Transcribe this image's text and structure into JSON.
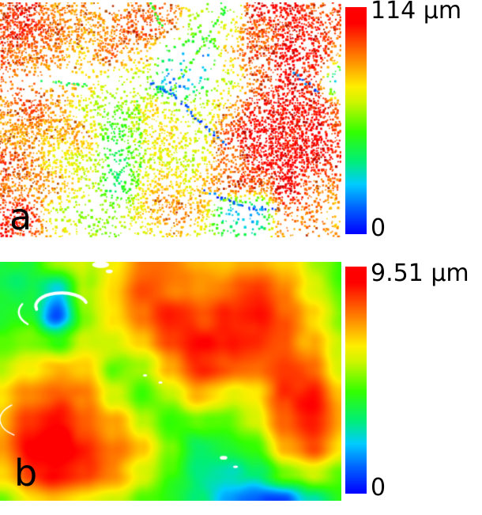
{
  "colormap": {
    "name": "rainbow-jet",
    "stops": [
      {
        "t": 0.0,
        "c": "#0000ff"
      },
      {
        "t": 0.12,
        "c": "#0066ff"
      },
      {
        "t": 0.22,
        "c": "#00ccff"
      },
      {
        "t": 0.32,
        "c": "#00ee77"
      },
      {
        "t": 0.45,
        "c": "#33ff00"
      },
      {
        "t": 0.58,
        "c": "#ccf500"
      },
      {
        "t": 0.65,
        "c": "#ffee00"
      },
      {
        "t": 0.75,
        "c": "#ff9900"
      },
      {
        "t": 0.85,
        "c": "#ff4400"
      },
      {
        "t": 0.93,
        "c": "#ff0000"
      },
      {
        "t": 1.0,
        "c": "#ff0000"
      }
    ],
    "text_color": "#000000",
    "background": "#ffffff"
  },
  "chart_data": [
    {
      "type": "heatmap",
      "panel_label": "a",
      "style": "sparse-speckle",
      "unit": "µm",
      "value_range": [
        0,
        114
      ],
      "colorbar": {
        "max_label": "114 µm",
        "min_label": "0",
        "orientation": "vertical",
        "position": "right"
      },
      "grid_cols": 13,
      "grid_rows": 10,
      "values": [
        [
          0.9,
          0.85,
          0.8,
          0.75,
          0.78,
          0.8,
          0.85,
          0.6,
          0.45,
          0.9,
          0.9,
          0.85,
          0.8
        ],
        [
          0.9,
          0.85,
          0.8,
          0.75,
          0.8,
          0.8,
          0.75,
          0.5,
          0.6,
          0.9,
          0.9,
          0.9,
          0.85
        ],
        [
          0.9,
          0.85,
          0.8,
          0.7,
          0.75,
          0.7,
          0.3,
          0.1,
          0.7,
          0.85,
          0.9,
          0.85,
          0.8
        ],
        [
          0.85,
          0.8,
          0.75,
          0.62,
          0.55,
          0.5,
          0.15,
          0.3,
          0.6,
          0.85,
          0.9,
          0.85,
          0.2
        ],
        [
          0.8,
          0.8,
          0.75,
          0.65,
          0.55,
          0.62,
          0.55,
          0.65,
          0.75,
          0.9,
          0.9,
          0.9,
          0.85
        ],
        [
          0.8,
          0.8,
          0.75,
          0.7,
          0.45,
          0.63,
          0.62,
          0.55,
          0.8,
          0.9,
          0.9,
          0.9,
          0.85
        ],
        [
          0.8,
          0.75,
          0.7,
          0.65,
          0.35,
          0.62,
          0.65,
          0.6,
          0.8,
          0.9,
          0.9,
          0.9,
          0.85
        ],
        [
          0.85,
          0.8,
          0.7,
          0.6,
          0.3,
          0.65,
          0.7,
          0.7,
          0.75,
          0.85,
          0.9,
          0.85,
          0.8
        ],
        [
          0.9,
          0.85,
          0.6,
          0.55,
          0.6,
          0.7,
          0.75,
          0.7,
          0.3,
          0.2,
          0.85,
          0.8,
          0.75
        ],
        [
          0.9,
          0.85,
          0.7,
          0.6,
          0.55,
          0.65,
          0.7,
          0.6,
          0.4,
          0.3,
          0.8,
          0.75,
          0.7
        ]
      ],
      "density": [
        [
          0.7,
          0.6,
          0.5,
          0.45,
          0.1,
          0.5,
          0.4,
          0.12,
          0.15,
          0.5,
          0.6,
          0.5,
          0.4
        ],
        [
          0.8,
          0.8,
          0.7,
          0.6,
          0.55,
          0.6,
          0.3,
          0.1,
          0.2,
          0.7,
          0.7,
          0.6,
          0.5
        ],
        [
          0.7,
          0.7,
          0.5,
          0.4,
          0.5,
          0.3,
          0.1,
          0.1,
          0.3,
          0.6,
          0.6,
          0.5,
          0.4
        ],
        [
          0.25,
          0.15,
          0.1,
          0.08,
          0.12,
          0.18,
          0.25,
          0.2,
          0.2,
          0.5,
          0.5,
          0.4,
          0.15
        ],
        [
          0.5,
          0.6,
          0.5,
          0.4,
          0.4,
          0.5,
          0.3,
          0.4,
          0.4,
          0.6,
          0.7,
          0.6,
          0.4
        ],
        [
          0.6,
          0.7,
          0.6,
          0.4,
          0.4,
          0.6,
          0.5,
          0.3,
          0.5,
          0.7,
          0.8,
          0.7,
          0.5
        ],
        [
          0.6,
          0.6,
          0.5,
          0.4,
          0.4,
          0.5,
          0.5,
          0.3,
          0.5,
          0.8,
          0.8,
          0.7,
          0.5
        ],
        [
          0.6,
          0.6,
          0.4,
          0.3,
          0.3,
          0.5,
          0.5,
          0.4,
          0.4,
          0.6,
          0.7,
          0.5,
          0.4
        ],
        [
          0.7,
          0.6,
          0.2,
          0.2,
          0.3,
          0.5,
          0.5,
          0.4,
          0.2,
          0.2,
          0.4,
          0.3,
          0.3
        ],
        [
          0.4,
          0.4,
          0.3,
          0.2,
          0.2,
          0.3,
          0.3,
          0.2,
          0.15,
          0.1,
          0.3,
          0.2,
          0.2
        ]
      ],
      "lines": [
        {
          "value": 0.45,
          "points": [
            [
              0.66,
              0.02
            ],
            [
              0.58,
              0.2
            ],
            [
              0.5,
              0.38
            ]
          ]
        },
        {
          "value": 0.1,
          "points": [
            [
              0.5,
              0.38
            ],
            [
              0.58,
              0.5
            ],
            [
              0.66,
              0.6
            ]
          ]
        },
        {
          "value": 0.45,
          "points": [
            [
              0.4,
              0.42
            ],
            [
              0.41,
              0.62
            ],
            [
              0.4,
              0.78
            ]
          ]
        },
        {
          "value": 0.12,
          "points": [
            [
              0.44,
              0.34
            ],
            [
              0.5,
              0.38
            ]
          ]
        },
        {
          "value": 0.1,
          "points": [
            [
              0.6,
              0.8
            ],
            [
              0.7,
              0.86
            ],
            [
              0.8,
              0.88
            ]
          ]
        },
        {
          "value": 0.4,
          "points": [
            [
              0.12,
              0.33
            ],
            [
              0.25,
              0.35
            ]
          ]
        },
        {
          "value": 0.1,
          "points": [
            [
              0.86,
              0.3
            ],
            [
              0.93,
              0.38
            ]
          ]
        },
        {
          "value": 0.45,
          "points": [
            [
              0.44,
              0.0
            ],
            [
              0.47,
              0.1
            ]
          ]
        }
      ]
    },
    {
      "type": "heatmap",
      "panel_label": "b",
      "style": "smooth",
      "unit": "µm",
      "value_range": [
        0,
        9.51
      ],
      "colorbar": {
        "max_label": "9.51 µm",
        "min_label": "0",
        "orientation": "vertical",
        "position": "right"
      },
      "grid_cols": 13,
      "grid_rows": 10,
      "values": [
        [
          0.45,
          0.4,
          0.5,
          0.6,
          0.7,
          0.8,
          0.8,
          0.75,
          0.7,
          0.75,
          0.7,
          0.55,
          0.45
        ],
        [
          0.4,
          0.35,
          0.2,
          0.55,
          0.7,
          0.85,
          0.8,
          0.75,
          0.8,
          0.85,
          0.75,
          0.6,
          0.45
        ],
        [
          0.45,
          0.4,
          0.05,
          0.5,
          0.65,
          0.8,
          0.9,
          0.85,
          0.9,
          0.9,
          0.8,
          0.65,
          0.5
        ],
        [
          0.5,
          0.55,
          0.45,
          0.6,
          0.6,
          0.7,
          0.85,
          0.9,
          0.9,
          0.85,
          0.8,
          0.7,
          0.55
        ],
        [
          0.6,
          0.7,
          0.75,
          0.7,
          0.5,
          0.55,
          0.75,
          0.85,
          0.8,
          0.8,
          0.85,
          0.8,
          0.6
        ],
        [
          0.7,
          0.8,
          0.85,
          0.8,
          0.6,
          0.45,
          0.55,
          0.7,
          0.6,
          0.65,
          0.85,
          0.9,
          0.7
        ],
        [
          0.75,
          0.9,
          0.95,
          0.85,
          0.75,
          0.55,
          0.4,
          0.5,
          0.45,
          0.55,
          0.8,
          0.9,
          0.75
        ],
        [
          0.8,
          0.95,
          0.95,
          0.9,
          0.8,
          0.7,
          0.5,
          0.35,
          0.4,
          0.45,
          0.7,
          0.8,
          0.65
        ],
        [
          0.7,
          0.85,
          0.9,
          0.85,
          0.75,
          0.65,
          0.5,
          0.35,
          0.3,
          0.35,
          0.5,
          0.55,
          0.45
        ],
        [
          0.55,
          0.65,
          0.7,
          0.65,
          0.6,
          0.5,
          0.45,
          0.35,
          0.2,
          0.12,
          0.1,
          0.25,
          0.4
        ]
      ],
      "white_spots": [
        {
          "x": 0.295,
          "y": 0.012,
          "rx": 0.025,
          "ry": 0.014
        },
        {
          "x": 0.32,
          "y": 0.04,
          "rx": 0.01,
          "ry": 0.008
        },
        {
          "x": 0.425,
          "y": 0.475,
          "rx": 0.006,
          "ry": 0.005
        },
        {
          "x": 0.47,
          "y": 0.505,
          "rx": 0.006,
          "ry": 0.005
        },
        {
          "x": 0.655,
          "y": 0.82,
          "rx": 0.011,
          "ry": 0.008
        },
        {
          "x": 0.69,
          "y": 0.858,
          "rx": 0.007,
          "ry": 0.005
        }
      ],
      "white_arcs": [
        {
          "cx": 0.18,
          "cy": 0.185,
          "rx": 0.075,
          "ry": 0.055,
          "a0": 2.9,
          "a1": 6.0,
          "w": 4
        },
        {
          "cx": 0.155,
          "cy": 0.21,
          "rx": 0.1,
          "ry": 0.075,
          "a0": 2.4,
          "a1": 3.6,
          "w": 2.5
        },
        {
          "cx": 0.1,
          "cy": 0.66,
          "rx": 0.1,
          "ry": 0.08,
          "a0": 2.2,
          "a1": 4.0,
          "w": 1.5
        }
      ]
    }
  ]
}
